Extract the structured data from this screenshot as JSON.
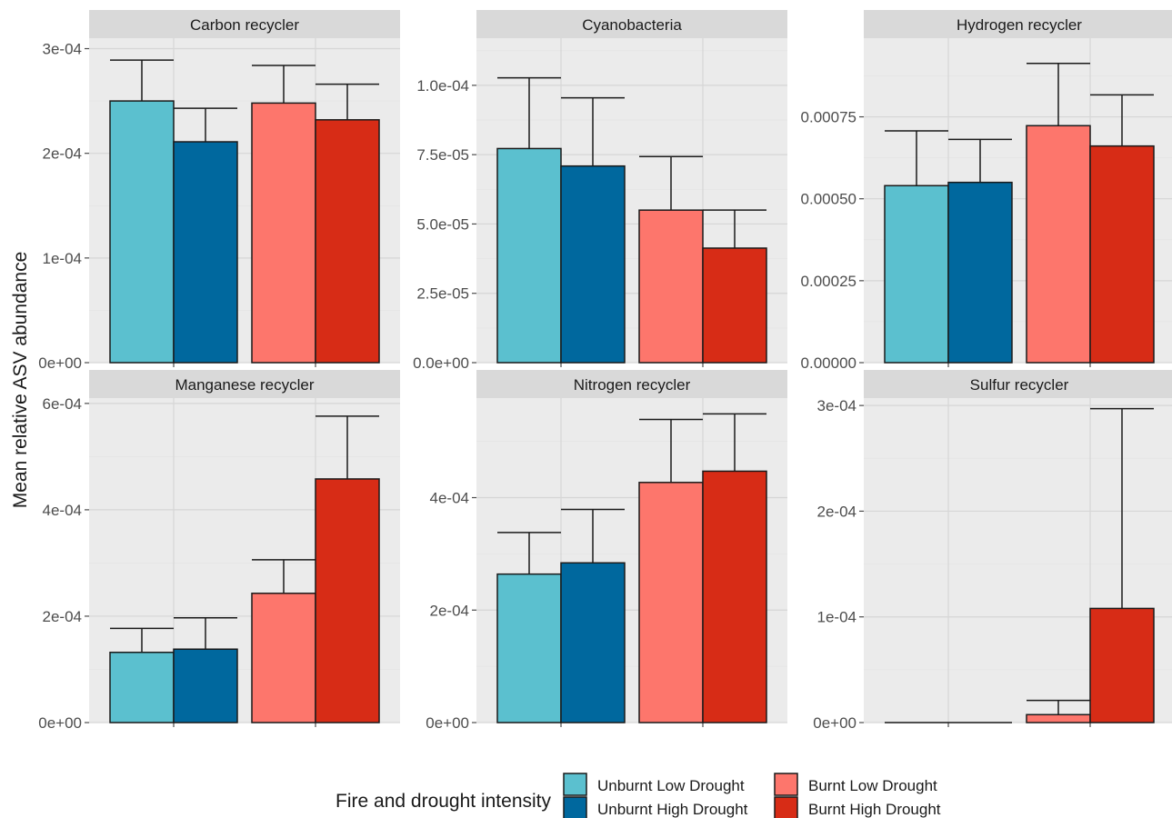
{
  "chart_data": {
    "type": "bar",
    "ylabel": "Mean relative ASV abundance",
    "legend": {
      "title": "Fire and drought intensity",
      "position": "bottom",
      "entries": [
        {
          "label": "Unburnt Low Drought",
          "color": "#5bc0cf"
        },
        {
          "label": "Unburnt High Drought",
          "color": "#00689e"
        },
        {
          "label": "Burnt Low Drought",
          "color": "#fd766c"
        },
        {
          "label": "Burnt High Drought",
          "color": "#d72c16"
        }
      ]
    },
    "groups": [
      "Unburnt Low Drought",
      "Unburnt High Drought",
      "Burnt Low Drought",
      "Burnt High Drought"
    ],
    "panels": [
      {
        "title": "Carbon recycler",
        "ylim": [
          0,
          0.00031
        ],
        "ticks": [
          0,
          0.0001,
          0.0002,
          0.0003
        ],
        "tick_labels": [
          "0e+00",
          "1e-04",
          "2e-04",
          "3e-04"
        ],
        "values": [
          0.00025,
          0.000211,
          0.000248,
          0.000232
        ],
        "err_upper": [
          0.000289,
          0.000243,
          0.000284,
          0.000266
        ]
      },
      {
        "title": "Cyanobacteria",
        "ylim": [
          0,
          0.000117
        ],
        "ticks": [
          0,
          2.5e-05,
          5e-05,
          7.5e-05,
          0.0001
        ],
        "tick_labels": [
          "0.0e+00",
          "2.5e-05",
          "5.0e-05",
          "7.5e-05",
          "1.0e-04"
        ],
        "values": [
          7.72e-05,
          7.09e-05,
          5.5e-05,
          4.13e-05
        ],
        "err_upper": [
          0.0001027,
          9.55e-05,
          7.43e-05,
          5.5e-05
        ]
      },
      {
        "title": "Hydrogen recycler",
        "ylim": [
          0,
          0.00099
        ],
        "ticks": [
          0,
          0.00025,
          0.0005,
          0.00075
        ],
        "tick_labels": [
          "0.00000",
          "0.00025",
          "0.00050",
          "0.00075"
        ],
        "values": [
          0.00054,
          0.00055,
          0.000723,
          0.000661
        ],
        "err_upper": [
          0.000707,
          0.000681,
          0.000913,
          0.000817
        ]
      },
      {
        "title": "Manganese recycler",
        "ylim": [
          0,
          0.00061
        ],
        "ticks": [
          0,
          0.0002,
          0.0004,
          0.0006
        ],
        "tick_labels": [
          "0e+00",
          "2e-04",
          "4e-04",
          "6e-04"
        ],
        "values": [
          0.000132,
          0.000138,
          0.000243,
          0.000458
        ],
        "err_upper": [
          0.000177,
          0.000197,
          0.000306,
          0.000576
        ]
      },
      {
        "title": "Nitrogen recycler",
        "ylim": [
          0,
          0.000577
        ],
        "ticks": [
          0,
          0.0002,
          0.0004
        ],
        "tick_labels": [
          "0e+00",
          "2e-04",
          "4e-04"
        ],
        "values": [
          0.000264,
          0.000284,
          0.000427,
          0.000447
        ],
        "err_upper": [
          0.000338,
          0.000379,
          0.000539,
          0.000549
        ]
      },
      {
        "title": "Sulfur recycler",
        "ylim": [
          0,
          0.000307
        ],
        "ticks": [
          0,
          0.0001,
          0.0002,
          0.0003
        ],
        "tick_labels": [
          "0e+00",
          "1e-04",
          "2e-04",
          "3e-04"
        ],
        "values": [
          0,
          0,
          7.5e-06,
          0.000108
        ],
        "err_upper": [
          0,
          0,
          2.1e-05,
          0.000297
        ]
      }
    ]
  }
}
